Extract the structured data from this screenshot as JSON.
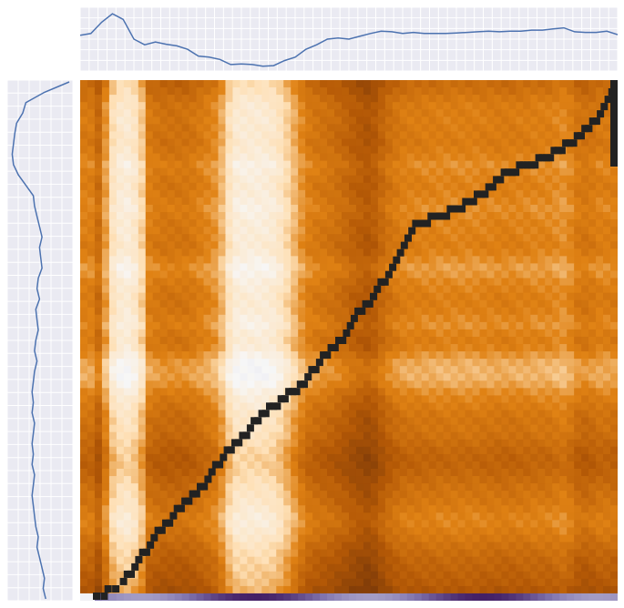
{
  "chart_data": {
    "type": "heatmap",
    "title": "",
    "xlabel": "",
    "ylabel": "",
    "colormap": {
      "name": "PuOr",
      "stops": [
        "#2d004b",
        "#8073ac",
        "#d8daeb",
        "#f7f7f7",
        "#fee0b6",
        "#e08214",
        "#b35806",
        "#7f3b08"
      ]
    },
    "panel_background": "#eaeaf2",
    "path_color": "#222222",
    "curve_color": "#4c72b0",
    "grid": true,
    "matrix": {
      "n_cols": 74,
      "n_rows": 71,
      "value_range": [
        0,
        1
      ],
      "column_profile": [
        0.55,
        0.55,
        0.45,
        0.65,
        0.88,
        0.95,
        0.97,
        0.92,
        0.8,
        0.55,
        0.52,
        0.5,
        0.5,
        0.5,
        0.5,
        0.52,
        0.55,
        0.58,
        0.62,
        0.72,
        0.88,
        0.97,
        0.98,
        0.98,
        0.98,
        0.97,
        0.95,
        0.9,
        0.82,
        0.72,
        0.62,
        0.55,
        0.52,
        0.5,
        0.48,
        0.45,
        0.42,
        0.38,
        0.35,
        0.32,
        0.35,
        0.42,
        0.48,
        0.52,
        0.55,
        0.56,
        0.56,
        0.57,
        0.57,
        0.58,
        0.58,
        0.58,
        0.58,
        0.58,
        0.58,
        0.57,
        0.57,
        0.56,
        0.56,
        0.56,
        0.57,
        0.57,
        0.58,
        0.58,
        0.58,
        0.6,
        0.62,
        0.58,
        0.52,
        0.5,
        0.52,
        0.55,
        0.55,
        0.54
      ],
      "row_profile": [
        0.45,
        0.48,
        0.52,
        0.55,
        0.55,
        0.56,
        0.55,
        0.55,
        0.54,
        0.56,
        0.58,
        0.62,
        0.6,
        0.58,
        0.57,
        0.58,
        0.6,
        0.62,
        0.6,
        0.58,
        0.58,
        0.57,
        0.56,
        0.58,
        0.62,
        0.66,
        0.64,
        0.6,
        0.58,
        0.56,
        0.56,
        0.57,
        0.6,
        0.62,
        0.58,
        0.56,
        0.58,
        0.64,
        0.7,
        0.72,
        0.72,
        0.68,
        0.62,
        0.58,
        0.55,
        0.52,
        0.5,
        0.5,
        0.48,
        0.45,
        0.42,
        0.4,
        0.4,
        0.42,
        0.45,
        0.48,
        0.5,
        0.52,
        0.55,
        0.58,
        0.58,
        0.55,
        0.52,
        0.48,
        0.45,
        0.42,
        0.4,
        0.38,
        0.36,
        0.32,
        0.3
      ]
    },
    "warping_path": [
      [
        0,
        70
      ],
      [
        2,
        70
      ],
      [
        3,
        69
      ],
      [
        5,
        69
      ],
      [
        7,
        68
      ],
      [
        8,
        67
      ],
      [
        9,
        67
      ],
      [
        10,
        66
      ],
      [
        11,
        65
      ],
      [
        12,
        64
      ],
      [
        13,
        64
      ],
      [
        14,
        63
      ],
      [
        15,
        62
      ],
      [
        16,
        61
      ],
      [
        17,
        61
      ],
      [
        18,
        60
      ],
      [
        19,
        60
      ],
      [
        20,
        59
      ],
      [
        21,
        58
      ],
      [
        22,
        58
      ],
      [
        23,
        57
      ],
      [
        24,
        57
      ],
      [
        25,
        56
      ],
      [
        26,
        56
      ],
      [
        27,
        55
      ],
      [
        28,
        55
      ],
      [
        29,
        54
      ],
      [
        30,
        53
      ],
      [
        31,
        52
      ],
      [
        32,
        52
      ],
      [
        33,
        51
      ],
      [
        34,
        50
      ],
      [
        35,
        50
      ],
      [
        36,
        49
      ],
      [
        37,
        49
      ],
      [
        38,
        48
      ],
      [
        39,
        48
      ],
      [
        40,
        47
      ],
      [
        41,
        46
      ],
      [
        42,
        46
      ],
      [
        43,
        45
      ],
      [
        44,
        45
      ],
      [
        45,
        44
      ],
      [
        46,
        44
      ],
      [
        47,
        44
      ],
      [
        48,
        43
      ],
      [
        49,
        43
      ],
      [
        50,
        42
      ],
      [
        51,
        42
      ],
      [
        52,
        42
      ],
      [
        53,
        41
      ],
      [
        54,
        41
      ],
      [
        55,
        40
      ],
      [
        56,
        39
      ],
      [
        57,
        39
      ],
      [
        58,
        38
      ],
      [
        59,
        37
      ],
      [
        60,
        37
      ],
      [
        61,
        36
      ],
      [
        62,
        36
      ],
      [
        63,
        35
      ],
      [
        64,
        35
      ],
      [
        65,
        34
      ],
      [
        66,
        33
      ],
      [
        67,
        32
      ],
      [
        68,
        31
      ],
      [
        69,
        31
      ],
      [
        70,
        30
      ],
      [
        71,
        30
      ],
      [
        72,
        29
      ],
      [
        73,
        28
      ],
      [
        74,
        27
      ],
      [
        75,
        27
      ],
      [
        76,
        26
      ],
      [
        77,
        25
      ],
      [
        78,
        24
      ],
      [
        79,
        23
      ],
      [
        80,
        22
      ],
      [
        81,
        21
      ],
      [
        82,
        20
      ],
      [
        83,
        19
      ],
      [
        84,
        19
      ],
      [
        85,
        19
      ],
      [
        86,
        19
      ],
      [
        87,
        18
      ],
      [
        88,
        18
      ],
      [
        89,
        18
      ],
      [
        90,
        18
      ],
      [
        91,
        18
      ],
      [
        92,
        17
      ],
      [
        93,
        17
      ],
      [
        94,
        17
      ],
      [
        95,
        17
      ],
      [
        96,
        16
      ],
      [
        97,
        16
      ],
      [
        98,
        16
      ],
      [
        99,
        15
      ],
      [
        100,
        15
      ],
      [
        101,
        15
      ],
      [
        102,
        14
      ],
      [
        103,
        14
      ],
      [
        104,
        13
      ],
      [
        105,
        13
      ],
      [
        106,
        12
      ],
      [
        107,
        12
      ],
      [
        108,
        12
      ],
      [
        109,
        12
      ],
      [
        110,
        11
      ],
      [
        111,
        11
      ],
      [
        112,
        11
      ],
      [
        113,
        11
      ],
      [
        114,
        11
      ],
      [
        115,
        10
      ],
      [
        116,
        10
      ],
      [
        117,
        10
      ],
      [
        118,
        10
      ],
      [
        119,
        9
      ],
      [
        120,
        9
      ],
      [
        121,
        9
      ],
      [
        122,
        8
      ],
      [
        123,
        8
      ],
      [
        124,
        8
      ],
      [
        125,
        7
      ],
      [
        126,
        7
      ],
      [
        127,
        6
      ],
      [
        128,
        6
      ],
      [
        129,
        5
      ],
      [
        130,
        5
      ],
      [
        131,
        4
      ],
      [
        132,
        3
      ],
      [
        133,
        2
      ],
      [
        134,
        1
      ],
      [
        135,
        0
      ]
    ],
    "top_curve": {
      "x": [
        0,
        2,
        4,
        6,
        8,
        10,
        12,
        14,
        16,
        18,
        20,
        22,
        24,
        26,
        28,
        30,
        32,
        34,
        36,
        38,
        40,
        42,
        44,
        46,
        48,
        50,
        52,
        54,
        56,
        58,
        60,
        62,
        64,
        66,
        68,
        70,
        72,
        74,
        76,
        78,
        80,
        82,
        84,
        86,
        88,
        90,
        92,
        94,
        96,
        98,
        100
      ],
      "values": [
        0.57,
        0.6,
        0.8,
        0.95,
        0.85,
        0.5,
        0.4,
        0.45,
        0.41,
        0.38,
        0.32,
        0.2,
        0.18,
        0.14,
        0.05,
        0.06,
        0.05,
        0.02,
        0.03,
        0.12,
        0.18,
        0.32,
        0.4,
        0.5,
        0.52,
        0.5,
        0.55,
        0.6,
        0.64,
        0.63,
        0.6,
        0.62,
        0.6,
        0.6,
        0.6,
        0.61,
        0.62,
        0.63,
        0.64,
        0.63,
        0.64,
        0.64,
        0.66,
        0.66,
        0.68,
        0.7,
        0.63,
        0.62,
        0.62,
        0.64,
        0.58
      ]
    },
    "left_curve": {
      "y": [
        0,
        2,
        4,
        6,
        8,
        10,
        12,
        14,
        16,
        18,
        20,
        22,
        24,
        26,
        28,
        30,
        32,
        34,
        36,
        38,
        40,
        42,
        44,
        46,
        48,
        50,
        52,
        54,
        56,
        58,
        60,
        62,
        64,
        66,
        68,
        70,
        72,
        74,
        76,
        78,
        80,
        82,
        84,
        86,
        88,
        90,
        92,
        94,
        96,
        98,
        100
      ],
      "values": [
        1.0,
        0.6,
        0.3,
        0.25,
        0.15,
        0.12,
        0.1,
        0.08,
        0.1,
        0.18,
        0.3,
        0.42,
        0.44,
        0.48,
        0.52,
        0.56,
        0.52,
        0.54,
        0.56,
        0.5,
        0.48,
        0.52,
        0.46,
        0.48,
        0.5,
        0.46,
        0.44,
        0.48,
        0.44,
        0.42,
        0.4,
        0.42,
        0.4,
        0.44,
        0.42,
        0.4,
        0.42,
        0.4,
        0.44,
        0.42,
        0.4,
        0.42,
        0.44,
        0.46,
        0.5,
        0.48,
        0.52,
        0.56,
        0.6,
        0.58,
        0.62
      ]
    }
  }
}
